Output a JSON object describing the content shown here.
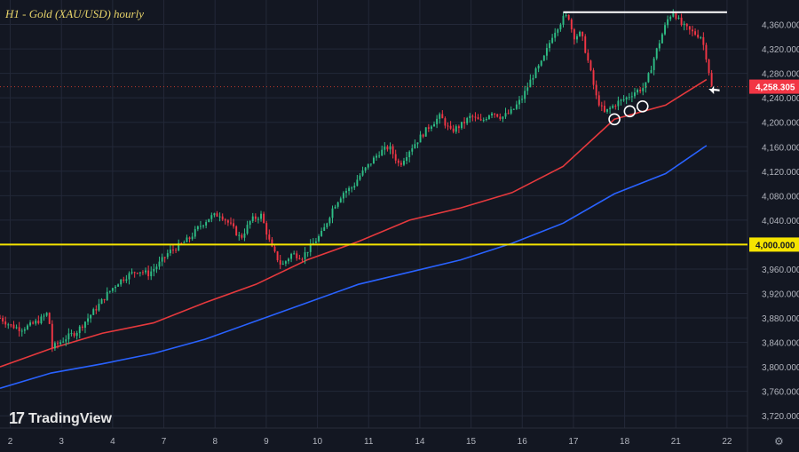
{
  "title": "H1 - Gold (XAU/USD) hourly",
  "brand": "TradingView",
  "settings_icon": "gear-icon",
  "colors": {
    "background": "#131722",
    "grid": "#232838",
    "bull": "#2ebd85",
    "bear": "#f23645",
    "ma_fast": "#e5393d",
    "ma_slow": "#2962ff",
    "support": "#f5e400",
    "resistance": "#ffffff",
    "price_dotted": "#c0392b",
    "axis_text": "#b2b5be"
  },
  "chart_data": {
    "type": "line",
    "title": "H1 - Gold (XAU/USD) hourly",
    "x_tick_labels": [
      "2",
      "3",
      "4",
      "7",
      "8",
      "9",
      "10",
      "11",
      "14",
      "15",
      "16",
      "17",
      "18",
      "21",
      "22"
    ],
    "y_tick_labels": [
      "4,360.000",
      "4,320.000",
      "4,280.000",
      "4,240.000",
      "4,200.000",
      "4,160.000",
      "4,120.000",
      "4,080.000",
      "4,040.000",
      "4,000.000",
      "3,960.000",
      "3,920.000",
      "3,880.000",
      "3,840.000",
      "3,800.000",
      "3,760.000",
      "3,720.000"
    ],
    "ylim": [
      3700,
      4400
    ],
    "xlim": [
      0,
      14.6
    ],
    "current_price": 4258.305,
    "current_price_label": "4,258.305",
    "support_level": 4000,
    "support_label": "4,000.000",
    "resistance_level": 4380,
    "resistance_x_range": [
      11.0,
      14.2
    ],
    "grid": true,
    "series": [
      {
        "kind": "price",
        "x": [
          0,
          0.2,
          0.4,
          0.6,
          0.8,
          0.95,
          1.0,
          1.1,
          1.3,
          1.5,
          1.7,
          1.9,
          2.1,
          2.3,
          2.5,
          2.7,
          2.9,
          3.1,
          3.3,
          3.5,
          3.7,
          3.9,
          4.1,
          4.3,
          4.5,
          4.7,
          4.9,
          5.1,
          5.3,
          5.5,
          5.7,
          5.9,
          6.0,
          6.1,
          6.3,
          6.5,
          6.7,
          6.9,
          7.0,
          7.2,
          7.4,
          7.6,
          7.8,
          8.0,
          8.2,
          8.4,
          8.6,
          8.8,
          9.0,
          9.2,
          9.4,
          9.6,
          9.8,
          10.0,
          10.2,
          10.4,
          10.6,
          10.8,
          11.0,
          11.1,
          11.2,
          11.35,
          11.5,
          11.65,
          11.8,
          11.95,
          12.05,
          12.2,
          12.4,
          12.6,
          12.8,
          12.95,
          13.05,
          13.15,
          13.3,
          13.5,
          13.7,
          13.8,
          13.9
        ],
        "y": [
          3880,
          3868,
          3862,
          3868,
          3878,
          3890,
          3830,
          3836,
          3848,
          3858,
          3878,
          3898,
          3920,
          3938,
          3950,
          3958,
          3952,
          3968,
          3988,
          3998,
          4010,
          4030,
          4045,
          4050,
          4032,
          4010,
          4040,
          4048,
          3995,
          3965,
          3985,
          3980,
          3990,
          4000,
          4020,
          4060,
          4085,
          4095,
          4110,
          4130,
          4150,
          4160,
          4130,
          4155,
          4175,
          4195,
          4210,
          4185,
          4195,
          4210,
          4200,
          4218,
          4208,
          4218,
          4240,
          4275,
          4300,
          4345,
          4370,
          4375,
          4340,
          4345,
          4295,
          4240,
          4215,
          4225,
          4232,
          4238,
          4250,
          4258,
          4312,
          4348,
          4370,
          4382,
          4360,
          4348,
          4340,
          4305,
          4258
        ],
        "chart_mode": "candles"
      },
      {
        "kind": "ma_fast",
        "x": [
          0,
          1,
          2,
          3,
          4,
          5,
          6,
          7,
          8,
          9,
          10,
          11,
          12,
          13,
          13.8
        ],
        "y": [
          3800,
          3830,
          3855,
          3872,
          3905,
          3935,
          3975,
          4005,
          4040,
          4060,
          4085,
          4128,
          4205,
          4228,
          4270
        ]
      },
      {
        "kind": "ma_slow",
        "x": [
          0,
          1,
          2,
          3,
          4,
          5,
          6,
          7,
          8,
          9,
          10,
          11,
          12,
          13,
          13.8
        ],
        "y": [
          3765,
          3790,
          3805,
          3822,
          3845,
          3875,
          3905,
          3935,
          3955,
          3975,
          4002,
          4035,
          4083,
          4116,
          4162
        ]
      }
    ],
    "circles": [
      {
        "x": 12.0,
        "y": 4205
      },
      {
        "x": 12.3,
        "y": 4218
      },
      {
        "x": 12.55,
        "y": 4226
      }
    ],
    "arrow": {
      "x": 13.95,
      "y": 4245
    }
  }
}
